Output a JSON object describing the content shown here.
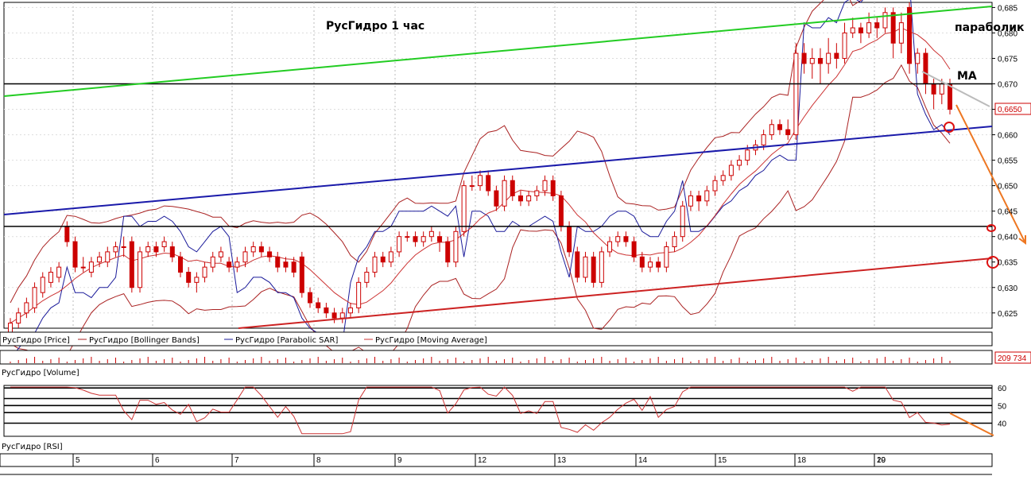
{
  "title": "РусГидро   1 час",
  "annotations": {
    "parabolic": "параболик",
    "ma": "MA"
  },
  "price_panel": {
    "legend": [
      {
        "text": "РусГидро [Price]",
        "color": "#cc0000"
      },
      {
        "text": "РусГидро [Bollinger Bands]",
        "color": "#aa2222"
      },
      {
        "text": "РусГидро [Parabolic SAR]",
        "color": "#1a1a9a"
      },
      {
        "text": "РусГидро [Moving Average]",
        "color": "#cc3333"
      }
    ],
    "last_price": "0,6650",
    "y_ticks": [
      "0,685",
      "0,680",
      "0,675",
      "0,670",
      "0,665",
      "0,660",
      "0,655",
      "0,650",
      "0,645",
      "0,640",
      "0,635",
      "0,630",
      "0,625"
    ]
  },
  "volume_panel": {
    "label": "РусГидро [Volume]",
    "last_value": "209 734"
  },
  "rsi_panel": {
    "label": "РусГидро [RSI]",
    "y_ticks": [
      "60",
      "50",
      "40"
    ]
  },
  "x_axis": {
    "labels": [
      "5",
      "6",
      "7",
      "8",
      "9",
      "12",
      "13",
      "14",
      "15",
      "18",
      "19",
      "20"
    ]
  },
  "colors": {
    "up": "#cc0000",
    "down": "#cc0000",
    "support_trend": "#1a1aaa",
    "resistance_trend": "#22cc22",
    "lower_trend": "#cc2222",
    "forecast": "#ee7722"
  },
  "chart_data": {
    "type": "candlestick",
    "title": "РусГидро   1 час",
    "y_range": [
      0.622,
      0.686
    ],
    "rsi_range": [
      33,
      61
    ],
    "horizontal_levels": [
      0.67,
      0.642
    ],
    "candles": [
      [
        0.621,
        0.623,
        0.62,
        0.624
      ],
      [
        0.623,
        0.625,
        0.622,
        0.626
      ],
      [
        0.625,
        0.627,
        0.624,
        0.628
      ],
      [
        0.626,
        0.63,
        0.625,
        0.631
      ],
      [
        0.629,
        0.632,
        0.628,
        0.633
      ],
      [
        0.631,
        0.633,
        0.63,
        0.634
      ],
      [
        0.632,
        0.634,
        0.631,
        0.635
      ],
      [
        0.642,
        0.639,
        0.638,
        0.643
      ],
      [
        0.639,
        0.634,
        0.633,
        0.64
      ],
      [
        0.634,
        0.634,
        0.633,
        0.636
      ],
      [
        0.633,
        0.635,
        0.632,
        0.636
      ],
      [
        0.635,
        0.636,
        0.634,
        0.637
      ],
      [
        0.635,
        0.637,
        0.634,
        0.638
      ],
      [
        0.637,
        0.638,
        0.636,
        0.639
      ],
      [
        0.638,
        0.638,
        0.636,
        0.64
      ],
      [
        0.639,
        0.63,
        0.629,
        0.64
      ],
      [
        0.63,
        0.637,
        0.629,
        0.638
      ],
      [
        0.637,
        0.638,
        0.636,
        0.639
      ],
      [
        0.638,
        0.637,
        0.636,
        0.639
      ],
      [
        0.638,
        0.639,
        0.637,
        0.64
      ],
      [
        0.638,
        0.636,
        0.635,
        0.639
      ],
      [
        0.636,
        0.633,
        0.632,
        0.637
      ],
      [
        0.633,
        0.631,
        0.63,
        0.634
      ],
      [
        0.631,
        0.632,
        0.629,
        0.633
      ],
      [
        0.632,
        0.634,
        0.631,
        0.635
      ],
      [
        0.634,
        0.636,
        0.633,
        0.637
      ],
      [
        0.636,
        0.637,
        0.635,
        0.638
      ],
      [
        0.635,
        0.634,
        0.633,
        0.636
      ],
      [
        0.634,
        0.635,
        0.633,
        0.636
      ],
      [
        0.635,
        0.637,
        0.634,
        0.638
      ],
      [
        0.637,
        0.638,
        0.636,
        0.639
      ],
      [
        0.638,
        0.637,
        0.636,
        0.639
      ],
      [
        0.637,
        0.636,
        0.635,
        0.638
      ],
      [
        0.636,
        0.634,
        0.633,
        0.637
      ],
      [
        0.635,
        0.634,
        0.633,
        0.636
      ],
      [
        0.635,
        0.633,
        0.632,
        0.636
      ],
      [
        0.636,
        0.629,
        0.628,
        0.637
      ],
      [
        0.629,
        0.627,
        0.626,
        0.63
      ],
      [
        0.627,
        0.626,
        0.625,
        0.628
      ],
      [
        0.626,
        0.625,
        0.624,
        0.627
      ],
      [
        0.625,
        0.624,
        0.623,
        0.626
      ],
      [
        0.624,
        0.625,
        0.623,
        0.626
      ],
      [
        0.625,
        0.626,
        0.624,
        0.627
      ],
      [
        0.626,
        0.631,
        0.625,
        0.632
      ],
      [
        0.631,
        0.633,
        0.63,
        0.634
      ],
      [
        0.633,
        0.636,
        0.632,
        0.637
      ],
      [
        0.636,
        0.635,
        0.634,
        0.637
      ],
      [
        0.635,
        0.637,
        0.634,
        0.638
      ],
      [
        0.637,
        0.64,
        0.636,
        0.641
      ],
      [
        0.64,
        0.64,
        0.639,
        0.641
      ],
      [
        0.64,
        0.639,
        0.638,
        0.641
      ],
      [
        0.639,
        0.64,
        0.638,
        0.641
      ],
      [
        0.64,
        0.641,
        0.639,
        0.642
      ],
      [
        0.64,
        0.639,
        0.637,
        0.641
      ],
      [
        0.639,
        0.635,
        0.634,
        0.64
      ],
      [
        0.635,
        0.641,
        0.634,
        0.642
      ],
      [
        0.641,
        0.65,
        0.64,
        0.651
      ],
      [
        0.65,
        0.65,
        0.649,
        0.652
      ],
      [
        0.65,
        0.652,
        0.649,
        0.653
      ],
      [
        0.652,
        0.649,
        0.648,
        0.653
      ],
      [
        0.649,
        0.646,
        0.645,
        0.65
      ],
      [
        0.646,
        0.651,
        0.645,
        0.652
      ],
      [
        0.651,
        0.648,
        0.647,
        0.652
      ],
      [
        0.648,
        0.647,
        0.646,
        0.649
      ],
      [
        0.647,
        0.648,
        0.646,
        0.649
      ],
      [
        0.648,
        0.649,
        0.647,
        0.65
      ],
      [
        0.649,
        0.651,
        0.648,
        0.652
      ],
      [
        0.651,
        0.648,
        0.647,
        0.652
      ],
      [
        0.648,
        0.642,
        0.641,
        0.649
      ],
      [
        0.642,
        0.637,
        0.636,
        0.643
      ],
      [
        0.637,
        0.632,
        0.631,
        0.638
      ],
      [
        0.632,
        0.636,
        0.631,
        0.637
      ],
      [
        0.636,
        0.631,
        0.63,
        0.637
      ],
      [
        0.631,
        0.637,
        0.63,
        0.638
      ],
      [
        0.637,
        0.639,
        0.636,
        0.64
      ],
      [
        0.639,
        0.64,
        0.638,
        0.641
      ],
      [
        0.64,
        0.639,
        0.638,
        0.641
      ],
      [
        0.639,
        0.636,
        0.635,
        0.64
      ],
      [
        0.636,
        0.634,
        0.633,
        0.637
      ],
      [
        0.634,
        0.635,
        0.633,
        0.636
      ],
      [
        0.635,
        0.634,
        0.633,
        0.636
      ],
      [
        0.634,
        0.638,
        0.633,
        0.639
      ],
      [
        0.638,
        0.64,
        0.637,
        0.641
      ],
      [
        0.64,
        0.646,
        0.639,
        0.647
      ],
      [
        0.646,
        0.648,
        0.645,
        0.649
      ],
      [
        0.648,
        0.647,
        0.645,
        0.649
      ],
      [
        0.647,
        0.649,
        0.646,
        0.65
      ],
      [
        0.649,
        0.651,
        0.648,
        0.652
      ],
      [
        0.651,
        0.652,
        0.65,
        0.653
      ],
      [
        0.652,
        0.654,
        0.651,
        0.655
      ],
      [
        0.654,
        0.655,
        0.653,
        0.656
      ],
      [
        0.655,
        0.657,
        0.654,
        0.658
      ],
      [
        0.657,
        0.658,
        0.656,
        0.659
      ],
      [
        0.658,
        0.66,
        0.657,
        0.661
      ],
      [
        0.66,
        0.662,
        0.659,
        0.663
      ],
      [
        0.662,
        0.661,
        0.66,
        0.663
      ],
      [
        0.661,
        0.66,
        0.659,
        0.663
      ],
      [
        0.66,
        0.676,
        0.659,
        0.678
      ],
      [
        0.676,
        0.674,
        0.672,
        0.678
      ],
      [
        0.674,
        0.675,
        0.671,
        0.677
      ],
      [
        0.675,
        0.674,
        0.67,
        0.677
      ],
      [
        0.674,
        0.676,
        0.672,
        0.679
      ],
      [
        0.676,
        0.675,
        0.673,
        0.678
      ],
      [
        0.675,
        0.68,
        0.674,
        0.682
      ],
      [
        0.68,
        0.681,
        0.679,
        0.683
      ],
      [
        0.681,
        0.68,
        0.678,
        0.682
      ],
      [
        0.68,
        0.682,
        0.679,
        0.684
      ],
      [
        0.682,
        0.681,
        0.679,
        0.683
      ],
      [
        0.681,
        0.684,
        0.68,
        0.685
      ],
      [
        0.684,
        0.678,
        0.675,
        0.685
      ],
      [
        0.678,
        0.682,
        0.676,
        0.684
      ],
      [
        0.685,
        0.674,
        0.672,
        0.686
      ],
      [
        0.674,
        0.676,
        0.672,
        0.677
      ],
      [
        0.676,
        0.67,
        0.668,
        0.677
      ],
      [
        0.67,
        0.668,
        0.665,
        0.671
      ],
      [
        0.668,
        0.67,
        0.666,
        0.671
      ],
      [
        0.67,
        0.665,
        0.664,
        0.671
      ]
    ]
  }
}
